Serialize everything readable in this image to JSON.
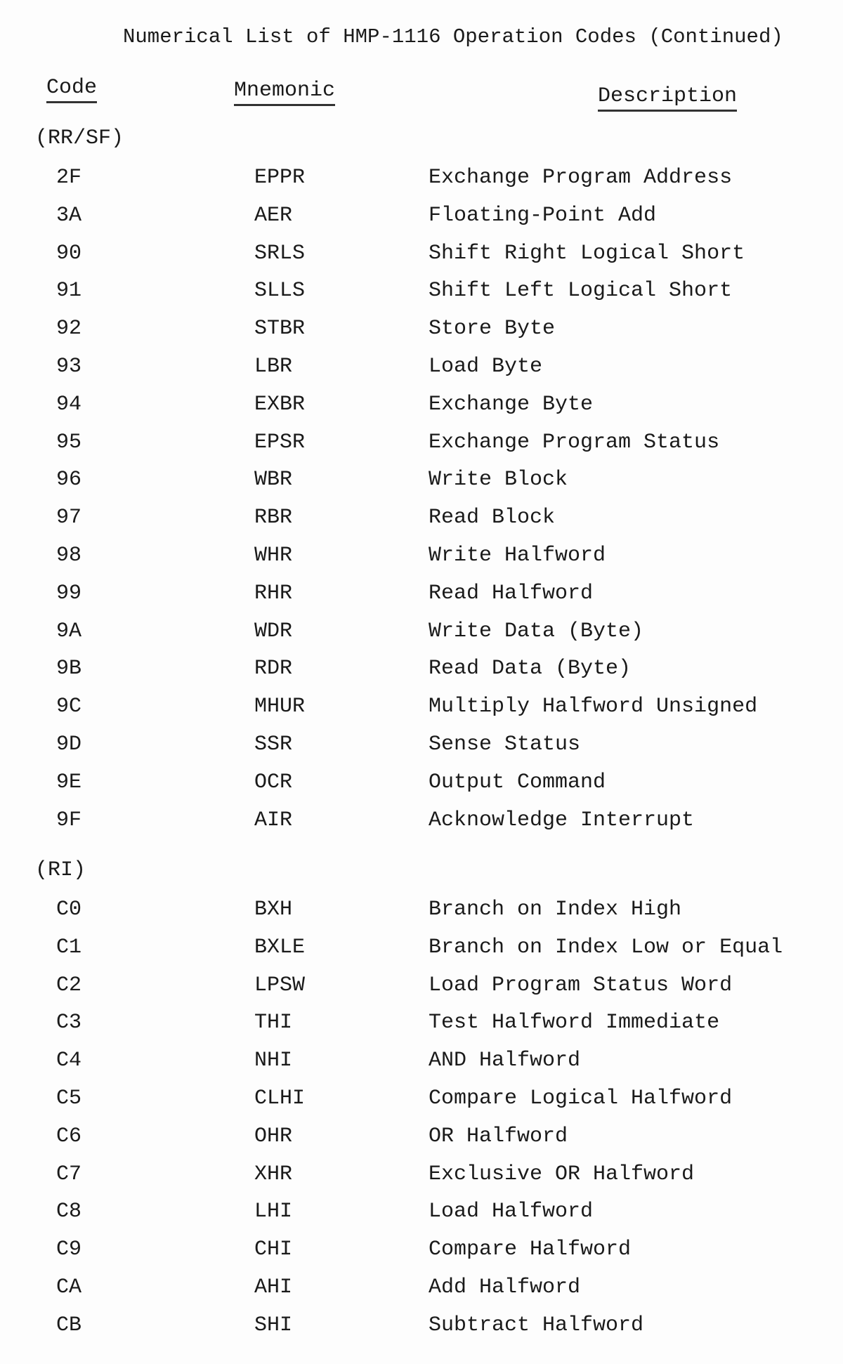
{
  "title": "Numerical List of HMP-1116 Operation Codes (Continued)",
  "headers": {
    "code": "Code",
    "mnemonic": "Mnemonic",
    "description": "Description"
  },
  "sections": [
    {
      "label": "(RR/SF)",
      "rows": [
        {
          "code": "2F",
          "mnemonic": "EPPR",
          "description": "Exchange Program Address"
        },
        {
          "code": "3A",
          "mnemonic": "AER",
          "description": "Floating-Point Add"
        },
        {
          "code": "90",
          "mnemonic": "SRLS",
          "description": "Shift Right Logical Short"
        },
        {
          "code": "91",
          "mnemonic": "SLLS",
          "description": "Shift Left Logical Short"
        },
        {
          "code": "92",
          "mnemonic": "STBR",
          "description": "Store Byte"
        },
        {
          "code": "93",
          "mnemonic": "LBR",
          "description": "Load Byte"
        },
        {
          "code": "94",
          "mnemonic": "EXBR",
          "description": "Exchange Byte"
        },
        {
          "code": "95",
          "mnemonic": "EPSR",
          "description": "Exchange Program Status"
        },
        {
          "code": "96",
          "mnemonic": "WBR",
          "description": "Write Block"
        },
        {
          "code": "97",
          "mnemonic": "RBR",
          "description": "Read Block"
        },
        {
          "code": "98",
          "mnemonic": "WHR",
          "description": "Write Halfword"
        },
        {
          "code": "99",
          "mnemonic": "RHR",
          "description": "Read Halfword"
        },
        {
          "code": "9A",
          "mnemonic": "WDR",
          "description": "Write Data (Byte)"
        },
        {
          "code": "9B",
          "mnemonic": "RDR",
          "description": "Read Data (Byte)"
        },
        {
          "code": "9C",
          "mnemonic": "MHUR",
          "description": "Multiply Halfword Unsigned"
        },
        {
          "code": "9D",
          "mnemonic": "SSR",
          "description": "Sense Status"
        },
        {
          "code": "9E",
          "mnemonic": "OCR",
          "description": "Output Command"
        },
        {
          "code": "9F",
          "mnemonic": "AIR",
          "description": "Acknowledge Interrupt"
        }
      ]
    },
    {
      "label": "(RI)",
      "rows": [
        {
          "code": "C0",
          "mnemonic": "BXH",
          "description": "Branch on Index High"
        },
        {
          "code": "C1",
          "mnemonic": "BXLE",
          "description": "Branch on Index Low or Equal"
        },
        {
          "code": "C2",
          "mnemonic": "LPSW",
          "description": "Load Program Status Word"
        },
        {
          "code": "C3",
          "mnemonic": "THI",
          "description": "Test Halfword Immediate"
        },
        {
          "code": "C4",
          "mnemonic": "NHI",
          "description": "AND Halfword"
        },
        {
          "code": "C5",
          "mnemonic": "CLHI",
          "description": "Compare Logical Halfword"
        },
        {
          "code": "C6",
          "mnemonic": "OHR",
          "description": "OR Halfword"
        },
        {
          "code": "C7",
          "mnemonic": "XHR",
          "description": "Exclusive OR Halfword"
        },
        {
          "code": "C8",
          "mnemonic": "LHI",
          "description": "Load Halfword"
        },
        {
          "code": "C9",
          "mnemonic": "CHI",
          "description": "Compare Halfword"
        },
        {
          "code": "CA",
          "mnemonic": "AHI",
          "description": "Add Halfword"
        },
        {
          "code": "CB",
          "mnemonic": "SHI",
          "description": "Subtract Halfword"
        }
      ]
    }
  ]
}
